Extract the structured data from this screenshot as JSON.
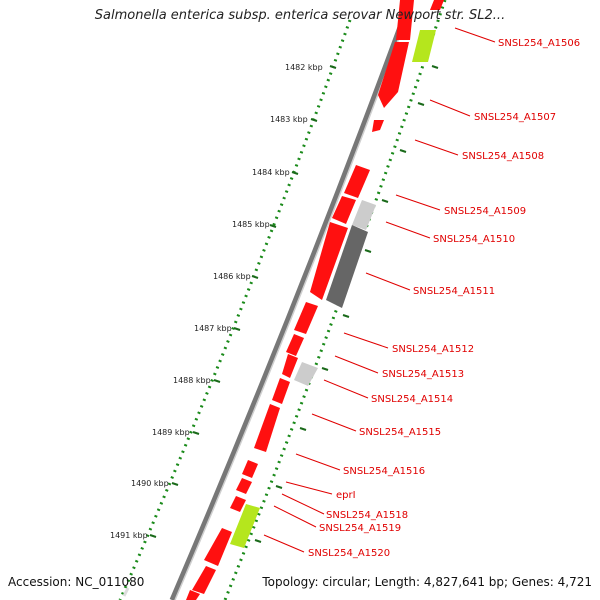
{
  "title": "Salmonella enterica subsp. enterica serovar Newport str. SL2...",
  "accession": "Accession: NC_011080",
  "topology": "Topology: circular; Length: 4,827,641 bp; Genes: 4,721",
  "kbp_labels": [
    "1482 kbp",
    "1483 kbp",
    "1484 kbp",
    "1485 kbp",
    "1486 kbp",
    "1487 kbp",
    "1488 kbp",
    "1489 kbp",
    "1490 kbp",
    "1491 kbp"
  ],
  "gene_labels": [
    "SNSL254_A1506",
    "SNSL254_A1507",
    "SNSL254_A1508",
    "SNSL254_A1509",
    "SNSL254_A1510",
    "SNSL254_A1511",
    "SNSL254_A1512",
    "SNSL254_A1513",
    "SNSL254_A1514",
    "SNSL254_A1515",
    "SNSL254_A1516",
    "eprI",
    "SNSL254_A1518",
    "SNSL254_A1519",
    "SNSL254_A1520"
  ],
  "colors": {
    "cds": "#ff0000",
    "pseudo": "#b5e61d",
    "grey_light": "#cccccc",
    "grey_dark": "#666666",
    "backbone": "#888888",
    "ticks": "#008000",
    "label": "#e00000"
  }
}
